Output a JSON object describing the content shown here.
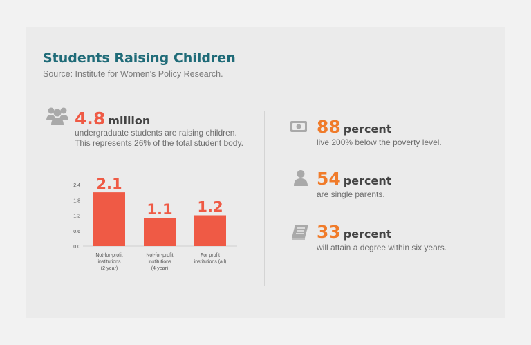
{
  "header": {
    "title": "Students Raising Children",
    "source": "Source: Institute for Women's Policy Research."
  },
  "headline": {
    "icon": "group-people-icon",
    "value": "4.8",
    "unit": "million",
    "line1": "undergraduate students are raising children.",
    "line2": "This represents 26% of the total student body."
  },
  "stats": [
    {
      "icon": "money-bill-icon",
      "value": "88",
      "unit": "percent",
      "text": "live 200% below the poverty level."
    },
    {
      "icon": "person-icon",
      "value": "54",
      "unit": "percent",
      "text": "are single parents."
    },
    {
      "icon": "book-icon",
      "value": "33",
      "unit": "percent",
      "text": "will attain a degree within six years."
    }
  ],
  "colors": {
    "accent_red": "#ef5a45",
    "accent_orange": "#f07b2a",
    "title_teal": "#1f6b78",
    "icon_gray": "#a9a9a9"
  },
  "chart_data": {
    "type": "bar",
    "categories": [
      [
        "Not-for-profit",
        "institutions",
        "(2-year)"
      ],
      [
        "Not-for-profit",
        "institutions",
        "(4-year)"
      ],
      [
        "For profit",
        "institutions (all)"
      ]
    ],
    "values": [
      2.1,
      1.1,
      1.2
    ],
    "value_labels": [
      "2.1",
      "1.1",
      "1.2"
    ],
    "yticks": [
      "0.0",
      "0.6",
      "1.2",
      "1.8",
      "2.4"
    ],
    "ylim": [
      0,
      2.4
    ],
    "grid": false,
    "bar_color": "#ef5a45"
  }
}
